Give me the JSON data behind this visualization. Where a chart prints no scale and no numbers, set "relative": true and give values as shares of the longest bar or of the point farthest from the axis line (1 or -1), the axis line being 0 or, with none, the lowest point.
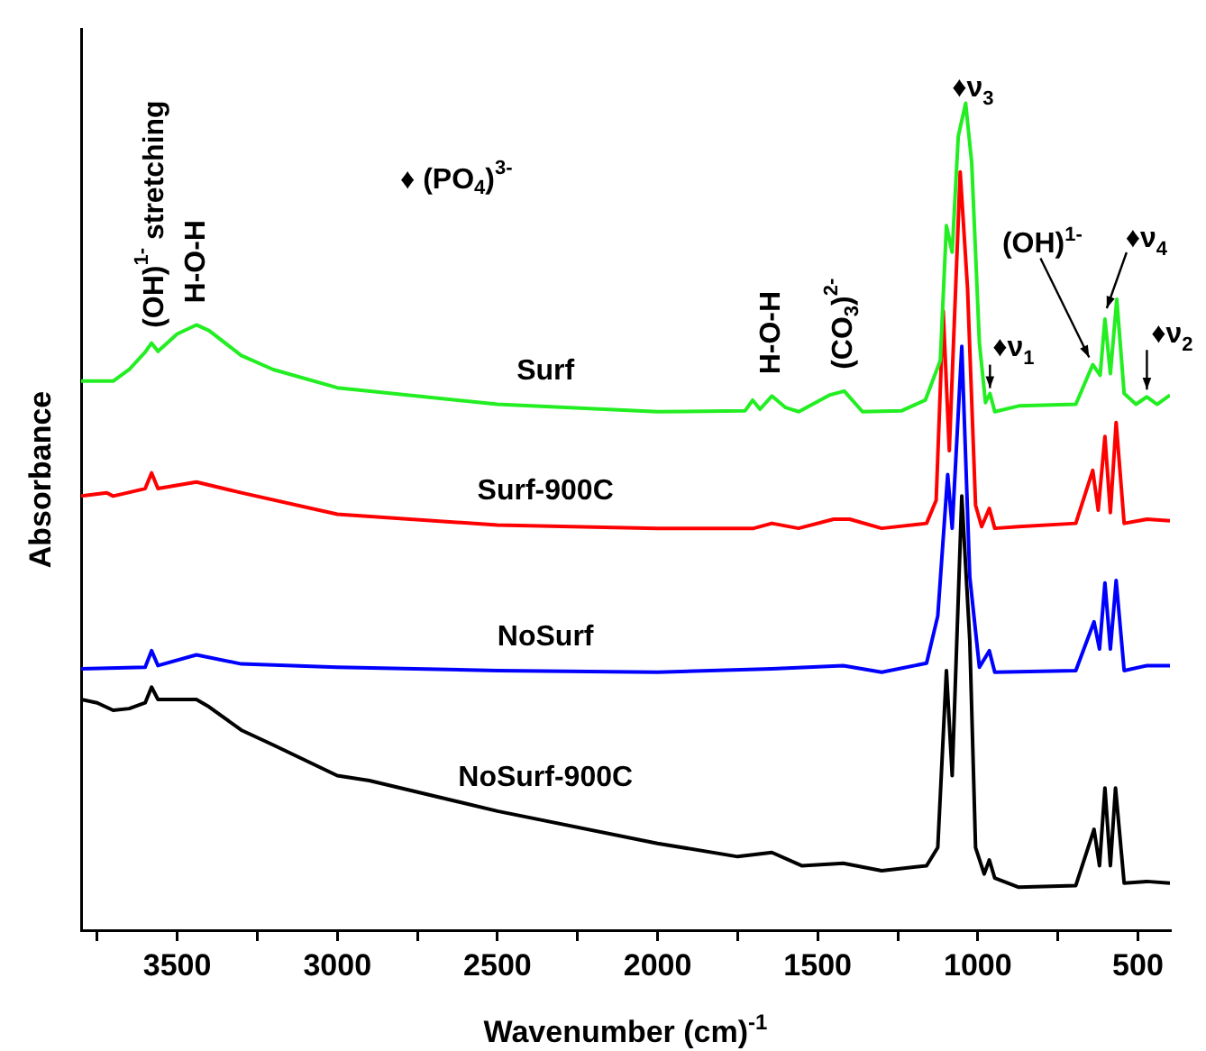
{
  "chart_data": {
    "type": "line",
    "relative": true,
    "xlabel": "Wavenumber (cm)$^{-1}$",
    "ylabel": "Absorbance",
    "xlim": [
      3800,
      400
    ],
    "xticks": [
      {
        "value": 3750,
        "label": null
      },
      3500,
      {
        "value": 3250,
        "label": null
      },
      3000,
      {
        "value": 2750,
        "label": null
      },
      2500,
      {
        "value": 2250,
        "label": null
      },
      2000,
      {
        "value": 1750,
        "label": null
      },
      1500,
      {
        "value": 1250,
        "label": null
      },
      1000,
      {
        "value": 750,
        "label": null
      },
      500
    ],
    "grid": false,
    "legend": false,
    "marker": "none",
    "line_style": "solid",
    "series": [
      {
        "name": "Surf",
        "color": "#22ee22",
        "x": [
          3800,
          3700,
          3650,
          3600,
          3580,
          3560,
          3500,
          3440,
          3400,
          3300,
          3200,
          3000,
          2500,
          2000,
          1727,
          1703,
          1680,
          1643,
          1600,
          1559,
          1464,
          1417,
          1360,
          1239,
          1164,
          1117,
          1098,
          1080,
          1061,
          1038,
          1019,
          995,
          976,
          962,
          947,
          872,
          694,
          641,
          618,
          603,
          586,
          566,
          543,
          506,
          472,
          440,
          400
        ],
        "values": [
          0.664,
          0.664,
          0.678,
          0.699,
          0.71,
          0.7,
          0.721,
          0.732,
          0.725,
          0.695,
          0.678,
          0.656,
          0.636,
          0.627,
          0.628,
          0.641,
          0.63,
          0.646,
          0.632,
          0.627,
          0.647,
          0.652,
          0.627,
          0.628,
          0.641,
          0.689,
          0.852,
          0.82,
          0.96,
          1.0,
          0.928,
          0.71,
          0.638,
          0.649,
          0.627,
          0.634,
          0.636,
          0.684,
          0.671,
          0.739,
          0.673,
          0.763,
          0.649,
          0.636,
          0.645,
          0.636,
          0.647
        ]
      },
      {
        "name": "Surf-900C",
        "color": "#ff0000",
        "x": [
          3800,
          3720,
          3700,
          3600,
          3580,
          3560,
          3440,
          3300,
          3000,
          2500,
          2000,
          1700,
          1643,
          1560,
          1450,
          1400,
          1300,
          1160,
          1130,
          1108,
          1089,
          1055,
          1032,
          1007,
          988,
          964,
          947,
          872,
          694,
          641,
          624,
          603,
          586,
          568,
          543,
          472,
          400
        ],
        "values": [
          0.525,
          0.529,
          0.525,
          0.534,
          0.553,
          0.534,
          0.542,
          0.529,
          0.503,
          0.49,
          0.486,
          0.486,
          0.492,
          0.486,
          0.497,
          0.497,
          0.486,
          0.492,
          0.52,
          0.749,
          0.58,
          0.917,
          0.776,
          0.514,
          0.488,
          0.51,
          0.486,
          0.488,
          0.492,
          0.556,
          0.508,
          0.597,
          0.505,
          0.614,
          0.492,
          0.497,
          0.495
        ]
      },
      {
        "name": "NoSurf",
        "color": "#0000ff",
        "x": [
          3800,
          3600,
          3580,
          3560,
          3440,
          3300,
          3000,
          2500,
          2000,
          1643,
          1420,
          1300,
          1160,
          1125,
          1094,
          1080,
          1050,
          1025,
          995,
          964,
          947,
          694,
          637,
          620,
          603,
          586,
          568,
          543,
          472,
          400
        ],
        "values": [
          0.316,
          0.318,
          0.338,
          0.32,
          0.333,
          0.322,
          0.318,
          0.314,
          0.312,
          0.316,
          0.32,
          0.312,
          0.323,
          0.38,
          0.551,
          0.486,
          0.706,
          0.427,
          0.318,
          0.338,
          0.312,
          0.314,
          0.373,
          0.34,
          0.42,
          0.34,
          0.423,
          0.314,
          0.32,
          0.32
        ]
      },
      {
        "name": "NoSurf-900C",
        "color": "#000000",
        "x": [
          3800,
          3750,
          3700,
          3650,
          3600,
          3580,
          3560,
          3440,
          3400,
          3300,
          3200,
          3000,
          2900,
          2500,
          2000,
          1750,
          1643,
          1550,
          1420,
          1300,
          1160,
          1125,
          1098,
          1080,
          1050,
          1025,
          1007,
          980,
          964,
          947,
          872,
          694,
          637,
          620,
          603,
          586,
          570,
          543,
          472,
          400
        ],
        "values": [
          0.279,
          0.275,
          0.266,
          0.268,
          0.275,
          0.294,
          0.279,
          0.279,
          0.27,
          0.242,
          0.224,
          0.187,
          0.181,
          0.144,
          0.105,
          0.089,
          0.094,
          0.078,
          0.081,
          0.072,
          0.078,
          0.1,
          0.314,
          0.187,
          0.525,
          0.35,
          0.1,
          0.068,
          0.085,
          0.063,
          0.052,
          0.054,
          0.122,
          0.078,
          0.172,
          0.078,
          0.172,
          0.057,
          0.059,
          0.057
        ]
      }
    ],
    "annotations": [
      {
        "text": "(OH)$^{1-}$ stretching",
        "x": 3570,
        "y": 0.7
      },
      {
        "text": "H-O-H",
        "x": 3440,
        "y": 0.732
      },
      "♦ (PO$_{4}$)$^{3-}$",
      {
        "text": "H-O-H",
        "x": 1643,
        "y": 0.646
      },
      {
        "text": "(CO$_{3}$)$^{2-}$",
        "x": 1417,
        "y": 0.652
      },
      {
        "text": "♦ν$_{3}$",
        "x": 1038,
        "y": 1.0
      },
      {
        "text": "♦ν$_{1}$",
        "x": 962,
        "y": 0.649
      },
      {
        "text": "(OH)$^{1-}$",
        "x": 641,
        "y": 0.684
      },
      {
        "text": "♦ν$_{4}$",
        "x": 603,
        "y": 0.739
      },
      {
        "text": "♦ν$_{2}$",
        "x": 472,
        "y": 0.645
      }
    ]
  }
}
